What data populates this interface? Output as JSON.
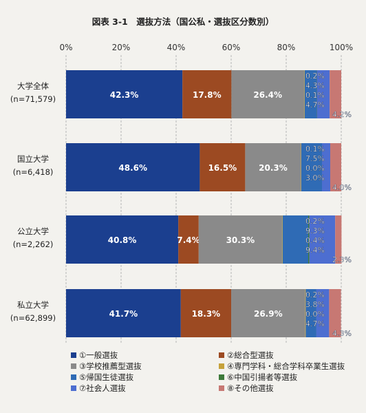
{
  "chart_data": {
    "type": "bar",
    "orientation": "horizontal",
    "stacked": true,
    "percent_scale": true,
    "title": "図表 3-1　選抜方法（国公私・選抜区分数別）",
    "x_ticks": [
      "0%",
      "20%",
      "40%",
      "60%",
      "80%",
      "100%"
    ],
    "xlim": [
      0,
      100
    ],
    "grid": true,
    "legend_position": "bottom",
    "categories": [
      {
        "label": "大学全体",
        "n": "(n=71,579)"
      },
      {
        "label": "国立大学",
        "n": "(n=6,418)"
      },
      {
        "label": "公立大学",
        "n": "(n=2,262)"
      },
      {
        "label": "私立大学",
        "n": "(n=62,899)"
      }
    ],
    "series": [
      {
        "name": "①一般選抜",
        "color": "#1b3f8f",
        "values": [
          42.3,
          48.6,
          40.8,
          41.7
        ]
      },
      {
        "name": "②総合型選抜",
        "color": "#9c4a22",
        "values": [
          17.8,
          16.5,
          7.4,
          18.3
        ]
      },
      {
        "name": "③学校推薦型選抜",
        "color": "#8a8a8a",
        "values": [
          26.4,
          20.3,
          30.3,
          26.9
        ]
      },
      {
        "name": "④専門学科・総合学科卒業生選抜",
        "color": "#c6a23b",
        "values": [
          0.2,
          0.1,
          0.2,
          0.2
        ]
      },
      {
        "name": "⑤帰国生徒選抜",
        "color": "#2f6bb5",
        "values": [
          4.3,
          7.5,
          9.3,
          3.8
        ]
      },
      {
        "name": "⑥中国引揚者等選抜",
        "color": "#3d7a3a",
        "values": [
          0.1,
          0.0,
          0.4,
          0.0
        ]
      },
      {
        "name": "⑦社会人選抜",
        "color": "#4d6ed0",
        "values": [
          4.7,
          3.0,
          9.4,
          4.7
        ]
      },
      {
        "name": "⑧その他選抜",
        "color": "#c77873",
        "values": [
          4.2,
          4.0,
          2.3,
          4.3
        ]
      }
    ],
    "labels_displayed": [
      [
        "42.3%",
        "17.8%",
        "26.4%",
        "0.2%",
        "4.3%",
        "0.1%",
        "4.7%",
        "4.2%"
      ],
      [
        "48.6%",
        "16.5%",
        "20.3%",
        "0.1%",
        "7.5%",
        "0.0%",
        "3.0%",
        "4.0%"
      ],
      [
        "40.8%",
        "7.4%",
        "30.3%",
        "0.2%",
        "9.3%",
        "0.4%",
        "9.4%",
        "2.3%"
      ],
      [
        "41.7%",
        "18.3%",
        "26.9%",
        "0.2%",
        "3.8%",
        "0.0%",
        "4.7%",
        "4.3%"
      ]
    ]
  }
}
